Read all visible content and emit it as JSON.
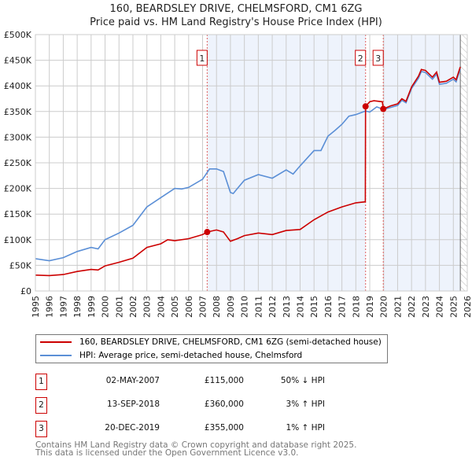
{
  "title": "160, BEARDSLEY DRIVE, CHELMSFORD, CM1 6ZG",
  "subtitle": "Price paid vs. HM Land Registry's House Price Index (HPI)",
  "chart_data": {
    "type": "line",
    "title": "Price paid vs. HM Land Registry's House Price Index (HPI)",
    "xlim": [
      1995,
      2026
    ],
    "ylim": [
      0,
      500000
    ],
    "x_ticks": [
      "1995",
      "1996",
      "1997",
      "1998",
      "1999",
      "2000",
      "2001",
      "2002",
      "2003",
      "2004",
      "2005",
      "2006",
      "2007",
      "2008",
      "2009",
      "2010",
      "2011",
      "2012",
      "2013",
      "2014",
      "2015",
      "2016",
      "2017",
      "2018",
      "2019",
      "2020",
      "2021",
      "2022",
      "2023",
      "2024",
      "2025",
      "2026"
    ],
    "y_ticks": [
      {
        "v": 0,
        "label": "£0"
      },
      {
        "v": 50000,
        "label": "£50K"
      },
      {
        "v": 100000,
        "label": "£100K"
      },
      {
        "v": 150000,
        "label": "£150K"
      },
      {
        "v": 200000,
        "label": "£200K"
      },
      {
        "v": 250000,
        "label": "£250K"
      },
      {
        "v": 300000,
        "label": "£300K"
      },
      {
        "v": 350000,
        "label": "£350K"
      },
      {
        "v": 400000,
        "label": "£400K"
      },
      {
        "v": 450000,
        "label": "£450K"
      },
      {
        "v": 500000,
        "label": "£500K"
      }
    ],
    "grid": true,
    "shaded_ranges": [
      [
        2007.33,
        2018.7
      ],
      [
        2019.97,
        2026
      ]
    ],
    "hatched_from": 2025.5,
    "series": [
      {
        "name": "160, BEARDSLEY DRIVE, CHELMSFORD, CM1 6ZG (semi-detached house)",
        "color": "#cc0000",
        "x": [
          1995,
          1996,
          1997,
          1998,
          1999,
          1999.5,
          2000,
          2001,
          2002,
          2003,
          2004,
          2004.5,
          2005,
          2006,
          2007,
          2007.33,
          2008,
          2008.5,
          2009,
          2009.5,
          2010,
          2011,
          2012,
          2013,
          2014,
          2015,
          2016,
          2017,
          2018,
          2018.68,
          2018.7,
          2019,
          2019.3,
          2019.9,
          2019.97,
          2020.5,
          2021,
          2021.3,
          2021.6,
          2022,
          2022.5,
          2022.7,
          2023,
          2023.5,
          2023.8,
          2024,
          2024.5,
          2025,
          2025.2,
          2025.5
        ],
        "y": [
          31000,
          30000,
          32000,
          38000,
          42000,
          41000,
          49000,
          56000,
          64000,
          85000,
          92000,
          100000,
          98000,
          102000,
          110000,
          115000,
          119000,
          115000,
          97000,
          102000,
          108000,
          113000,
          110000,
          118000,
          120000,
          139000,
          154000,
          164000,
          172000,
          174000,
          360000,
          369000,
          371000,
          369000,
          355000,
          361000,
          365000,
          375000,
          370000,
          398000,
          419000,
          432000,
          430000,
          417000,
          427000,
          407000,
          409000,
          417000,
          412000,
          437000
        ]
      },
      {
        "name": "HPI: Average price, semi-detached house, Chelmsford",
        "color": "#5b8fd6",
        "x": [
          1995,
          1996,
          1997,
          1998,
          1999,
          1999.5,
          2000,
          2001,
          2002,
          2003,
          2004,
          2005,
          2005.5,
          2006,
          2006.5,
          2007,
          2007.5,
          2008,
          2008.5,
          2009,
          2009.2,
          2009.5,
          2010,
          2011,
          2012,
          2013,
          2013.5,
          2014,
          2015,
          2015.5,
          2016,
          2016.5,
          2017,
          2017.5,
          2018,
          2018.7,
          2019,
          2019.5,
          2020,
          2020.5,
          2021,
          2021.3,
          2021.6,
          2022,
          2022.5,
          2022.7,
          2023,
          2023.5,
          2023.8,
          2024,
          2024.5,
          2025,
          2025.2,
          2025.5
        ],
        "y": [
          63000,
          59000,
          65000,
          77000,
          85000,
          82000,
          100000,
          113000,
          128000,
          164000,
          182000,
          200000,
          199000,
          202000,
          210000,
          218000,
          238000,
          238000,
          233000,
          192000,
          190000,
          200000,
          216000,
          227000,
          220000,
          236000,
          228000,
          244000,
          274000,
          274000,
          302000,
          313000,
          325000,
          341000,
          344000,
          351000,
          349000,
          359000,
          354000,
          358000,
          362000,
          372000,
          367000,
          395000,
          415000,
          428000,
          426000,
          413000,
          423000,
          403000,
          405000,
          413000,
          408000,
          433000
        ]
      }
    ],
    "sales": [
      {
        "id": "1",
        "x": 2007.33,
        "y": 115000
      },
      {
        "id": "2",
        "x": 2018.7,
        "y": 360000
      },
      {
        "id": "3",
        "x": 2019.97,
        "y": 355000
      }
    ]
  },
  "legend": [
    {
      "label": "160, BEARDSLEY DRIVE, CHELMSFORD, CM1 6ZG (semi-detached house)",
      "color": "#cc0000"
    },
    {
      "label": "HPI: Average price, semi-detached house, Chelmsford",
      "color": "#5b8fd6"
    }
  ],
  "transactions": [
    {
      "id": "1",
      "date": "02-MAY-2007",
      "price": "£115,000",
      "hpi": "50% ↓ HPI"
    },
    {
      "id": "2",
      "date": "13-SEP-2018",
      "price": "£360,000",
      "hpi": "3% ↑ HPI"
    },
    {
      "id": "3",
      "date": "20-DEC-2019",
      "price": "£355,000",
      "hpi": "1% ↑ HPI"
    }
  ],
  "footer": {
    "line1": "Contains HM Land Registry data © Crown copyright and database right 2025.",
    "line2": "This data is licensed under the Open Government Licence v3.0."
  }
}
